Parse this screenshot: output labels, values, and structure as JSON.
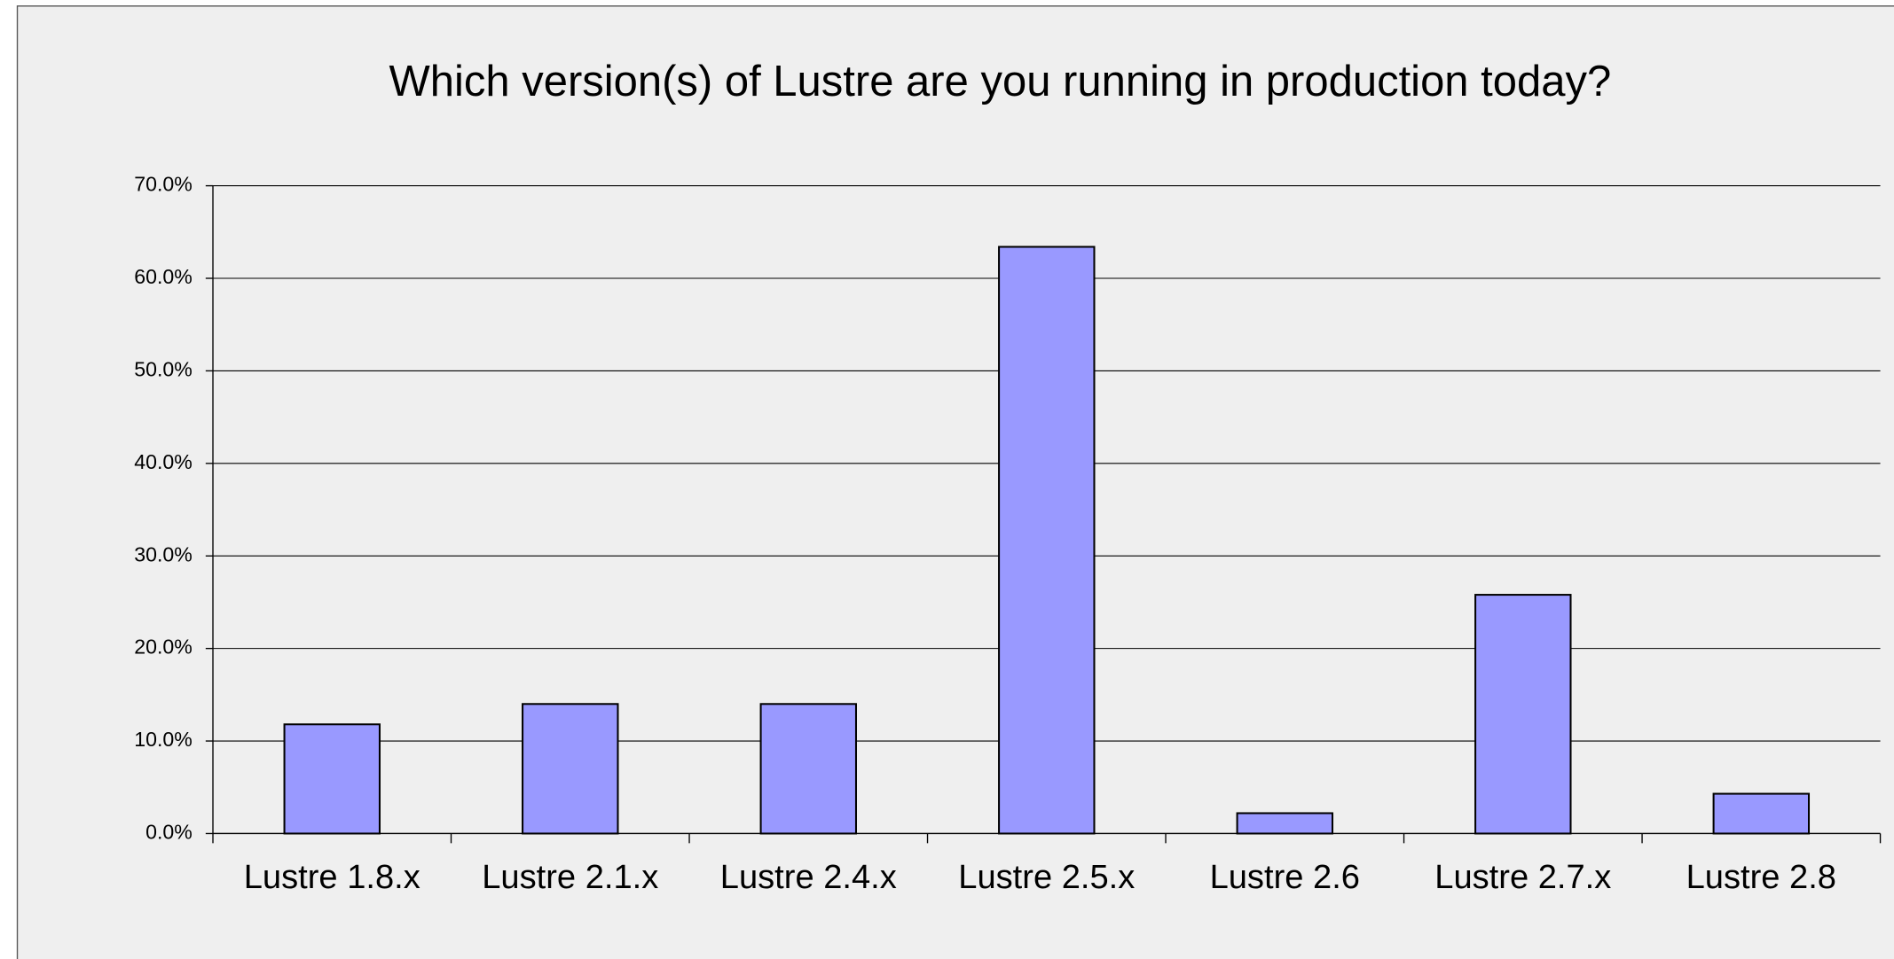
{
  "chart_data": {
    "type": "bar",
    "title": "Which version(s) of Lustre are you running in production today?",
    "categories": [
      "Lustre 1.8.x",
      "Lustre 2.1.x",
      "Lustre 2.4.x",
      "Lustre 2.5.x",
      "Lustre 2.6",
      "Lustre 2.7.x",
      "Lustre 2.8"
    ],
    "values": [
      11.8,
      14.0,
      14.0,
      63.4,
      2.2,
      25.8,
      4.3
    ],
    "color": "#9999ff",
    "ylim": [
      0,
      70
    ],
    "yticks": [
      {
        "value": 0,
        "label": "0.0%"
      },
      {
        "value": 10,
        "label": "10.0%"
      },
      {
        "value": 20,
        "label": "20.0%"
      },
      {
        "value": 30,
        "label": "30.0%"
      },
      {
        "value": 40,
        "label": "40.0%"
      },
      {
        "value": 50,
        "label": "50.0%"
      },
      {
        "value": 60,
        "label": "60.0%"
      },
      {
        "value": 70,
        "label": "70.0%"
      }
    ],
    "grid": true
  }
}
